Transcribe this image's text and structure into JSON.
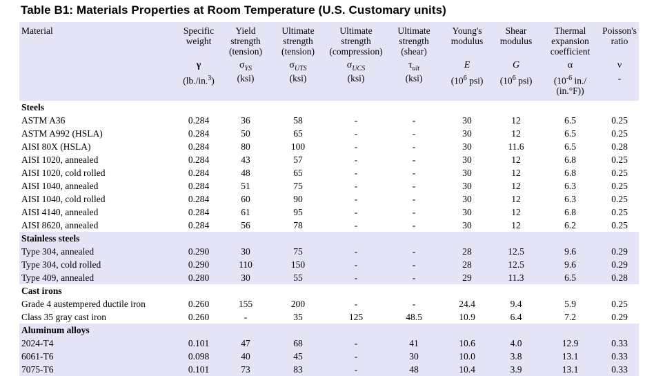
{
  "title": "Table B1: Materials Properties at Room Temperature (U.S. Customary units)",
  "colors": {
    "band": "#e4e4f6",
    "text": "#000000",
    "background": "#ffffff"
  },
  "table": {
    "columns": [
      {
        "id": "material",
        "label": "Material",
        "symbol_html": "",
        "unit_html": ""
      },
      {
        "id": "specific-weight",
        "label": "Specific weight",
        "symbol_html": "<b>γ</b>",
        "unit_html": "(lb./in.<sup>3</sup>)"
      },
      {
        "id": "yield-strength-tension",
        "label": "Yield strength (tension)",
        "symbol_html": "σ<sub>YS</sub>",
        "unit_html": "(ksi)"
      },
      {
        "id": "ultimate-strength-tension",
        "label": "Ultimate strength (tension)",
        "symbol_html": "σ<sub>UTS</sub>",
        "unit_html": "(ksi)"
      },
      {
        "id": "ultimate-strength-compression",
        "label": "Ultimate strength (compression)",
        "symbol_html": "σ<sub>UCS</sub>",
        "unit_html": "(ksi)"
      },
      {
        "id": "ultimate-strength-shear",
        "label": "Ultimate strength (shear)",
        "symbol_html": "τ<sub>ult</sub>",
        "unit_html": "(ksi)"
      },
      {
        "id": "youngs-modulus",
        "label": "Young's modulus",
        "symbol_html": "<i>E</i>",
        "unit_html": "(10<sup>6</sup> psi)"
      },
      {
        "id": "shear-modulus",
        "label": "Shear modulus",
        "symbol_html": "<i>G</i>",
        "unit_html": "(10<sup>6</sup> psi)"
      },
      {
        "id": "thermal-expansion-coefficient",
        "label": "Thermal expansion coefficient",
        "symbol_html": "α",
        "unit_html": "(10<sup>-6</sup> in./<br>(in.°F))"
      },
      {
        "id": "poissons-ratio",
        "label": "Poisson's ratio",
        "symbol_html": "ν",
        "unit_html": "-"
      }
    ],
    "sections": [
      {
        "name": "Steels",
        "shaded": false,
        "rows": [
          {
            "material": "ASTM A36",
            "values": [
              "0.284",
              "36",
              "58",
              "-",
              "-",
              "30",
              "12",
              "6.5",
              "0.25"
            ]
          },
          {
            "material": "ASTM A992 (HSLA)",
            "values": [
              "0.284",
              "50",
              "65",
              "-",
              "-",
              "30",
              "12",
              "6.5",
              "0.25"
            ]
          },
          {
            "material": "AISI 80X (HSLA)",
            "values": [
              "0.284",
              "80",
              "100",
              "-",
              "-",
              "30",
              "11.6",
              "6.5",
              "0.28"
            ]
          },
          {
            "material": "AISI 1020, annealed",
            "values": [
              "0.284",
              "43",
              "57",
              "-",
              "-",
              "30",
              "12",
              "6.8",
              "0.25"
            ]
          },
          {
            "material": "AISI 1020, cold rolled",
            "values": [
              "0.284",
              "48",
              "65",
              "-",
              "-",
              "30",
              "12",
              "6.8",
              "0.25"
            ]
          },
          {
            "material": "AISI 1040, annealed",
            "values": [
              "0.284",
              "51",
              "75",
              "-",
              "-",
              "30",
              "12",
              "6.3",
              "0.25"
            ]
          },
          {
            "material": "AISI 1040, cold rolled",
            "values": [
              "0.284",
              "60",
              "90",
              "-",
              "-",
              "30",
              "12",
              "6.3",
              "0.25"
            ]
          },
          {
            "material": "AISI 4140, annealed",
            "values": [
              "0.284",
              "61",
              "95",
              "-",
              "-",
              "30",
              "12",
              "6.8",
              "0.25"
            ]
          },
          {
            "material": "AISI 8620, annealed",
            "values": [
              "0.284",
              "56",
              "78",
              "-",
              "-",
              "30",
              "12",
              "6.2",
              "0.25"
            ]
          }
        ]
      },
      {
        "name": "Stainless steels",
        "shaded": true,
        "rows": [
          {
            "material": "Type 304, annealed",
            "values": [
              "0.290",
              "30",
              "75",
              "-",
              "-",
              "28",
              "12.5",
              "9.6",
              "0.29"
            ]
          },
          {
            "material": "Type 304, cold rolled",
            "values": [
              "0.290",
              "110",
              "150",
              "-",
              "-",
              "28",
              "12.5",
              "9.6",
              "0.29"
            ]
          },
          {
            "material": "Type 409, annealed",
            "values": [
              "0.280",
              "30",
              "55",
              "-",
              "-",
              "29",
              "11.3",
              "6.5",
              "0.28"
            ]
          }
        ]
      },
      {
        "name": "Cast irons",
        "shaded": false,
        "rows": [
          {
            "material": "Grade 4 austempered ductile iron",
            "values": [
              "0.260",
              "155",
              "200",
              "-",
              "-",
              "24.4",
              "9.4",
              "5.9",
              "0.25"
            ]
          },
          {
            "material": "Class 35 gray cast iron",
            "values": [
              "0.260",
              "-",
              "35",
              "125",
              "48.5",
              "10.9",
              "6.4",
              "7.2",
              "0.29"
            ]
          }
        ]
      },
      {
        "name": "Aluminum alloys",
        "shaded": true,
        "rows": [
          {
            "material": "2024-T4",
            "values": [
              "0.101",
              "47",
              "68",
              "-",
              "41",
              "10.6",
              "4.0",
              "12.9",
              "0.33"
            ]
          },
          {
            "material": "6061-T6",
            "values": [
              "0.098",
              "40",
              "45",
              "-",
              "30",
              "10.0",
              "3.8",
              "13.1",
              "0.33"
            ]
          },
          {
            "material": "7075-T6",
            "values": [
              "0.101",
              "73",
              "83",
              "-",
              "48",
              "10.4",
              "3.9",
              "13.1",
              "0.33"
            ]
          }
        ]
      }
    ]
  }
}
